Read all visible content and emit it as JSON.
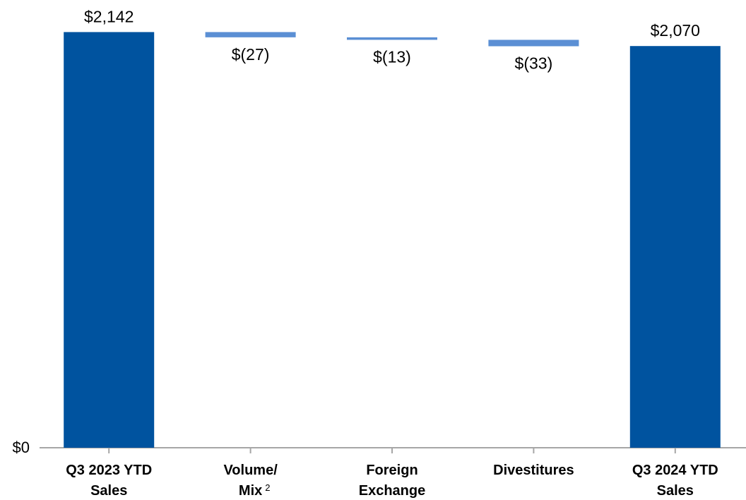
{
  "chart_data": {
    "type": "waterfall",
    "categories": [
      [
        "Q3 2023 YTD",
        "Sales"
      ],
      [
        "Volume/",
        "Mix"
      ],
      [
        "Foreign",
        "Exchange"
      ],
      [
        "Divestitures"
      ],
      [
        "Q3 2024 YTD",
        "Sales"
      ]
    ],
    "category_superscript": {
      "category": 1,
      "label": "2"
    },
    "values": [
      2142,
      -27,
      -13,
      -33,
      2070
    ],
    "value_labels": [
      "$2,142",
      "$(27)",
      "$(13)",
      "$(33)",
      "$2,070"
    ],
    "measure": [
      "absolute",
      "relative",
      "relative",
      "relative",
      "absolute"
    ],
    "colors": {
      "absolute": "#00539f",
      "relative": "#5b8fd4"
    },
    "ylim": [
      0,
      2300
    ],
    "yticks": [
      {
        "value": 0,
        "label": "$0"
      }
    ]
  }
}
